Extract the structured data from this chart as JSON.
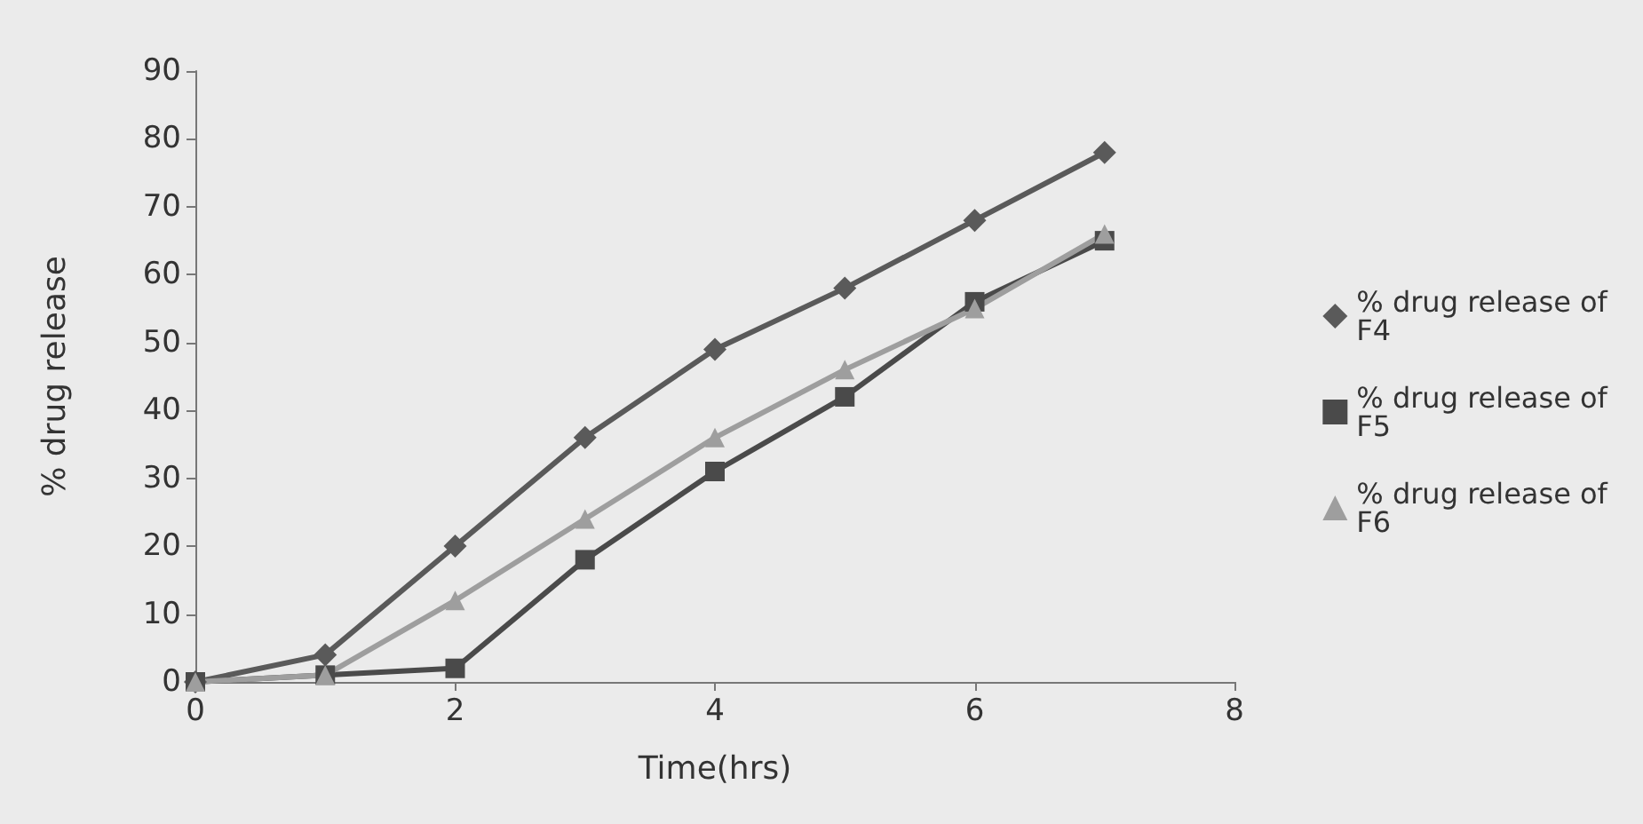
{
  "chart_data": {
    "type": "line",
    "xlabel": "Time(hrs)",
    "ylabel": "% drug release",
    "x": [
      0,
      1,
      2,
      3,
      4,
      5,
      6,
      7
    ],
    "xlim": [
      0,
      8
    ],
    "xticks": [
      0,
      2,
      4,
      6,
      8
    ],
    "ylim": [
      0,
      90
    ],
    "yticks": [
      0,
      10,
      20,
      30,
      40,
      50,
      60,
      70,
      80,
      90
    ],
    "grid": false,
    "legend": "right",
    "line_style": "solid",
    "series": [
      {
        "name": "% drug release of F4",
        "color": "#5a5a5a",
        "marker": "diamond",
        "values": [
          0,
          4,
          20,
          36,
          49,
          58,
          68,
          78
        ]
      },
      {
        "name": "% drug release of F5",
        "color": "#4a4a4a",
        "marker": "square",
        "values": [
          0,
          1,
          2,
          18,
          31,
          42,
          56,
          65
        ]
      },
      {
        "name": "% drug release of F6",
        "color": "#9e9e9e",
        "marker": "triangle",
        "values": [
          0,
          1,
          12,
          24,
          36,
          46,
          55,
          66
        ]
      }
    ]
  }
}
